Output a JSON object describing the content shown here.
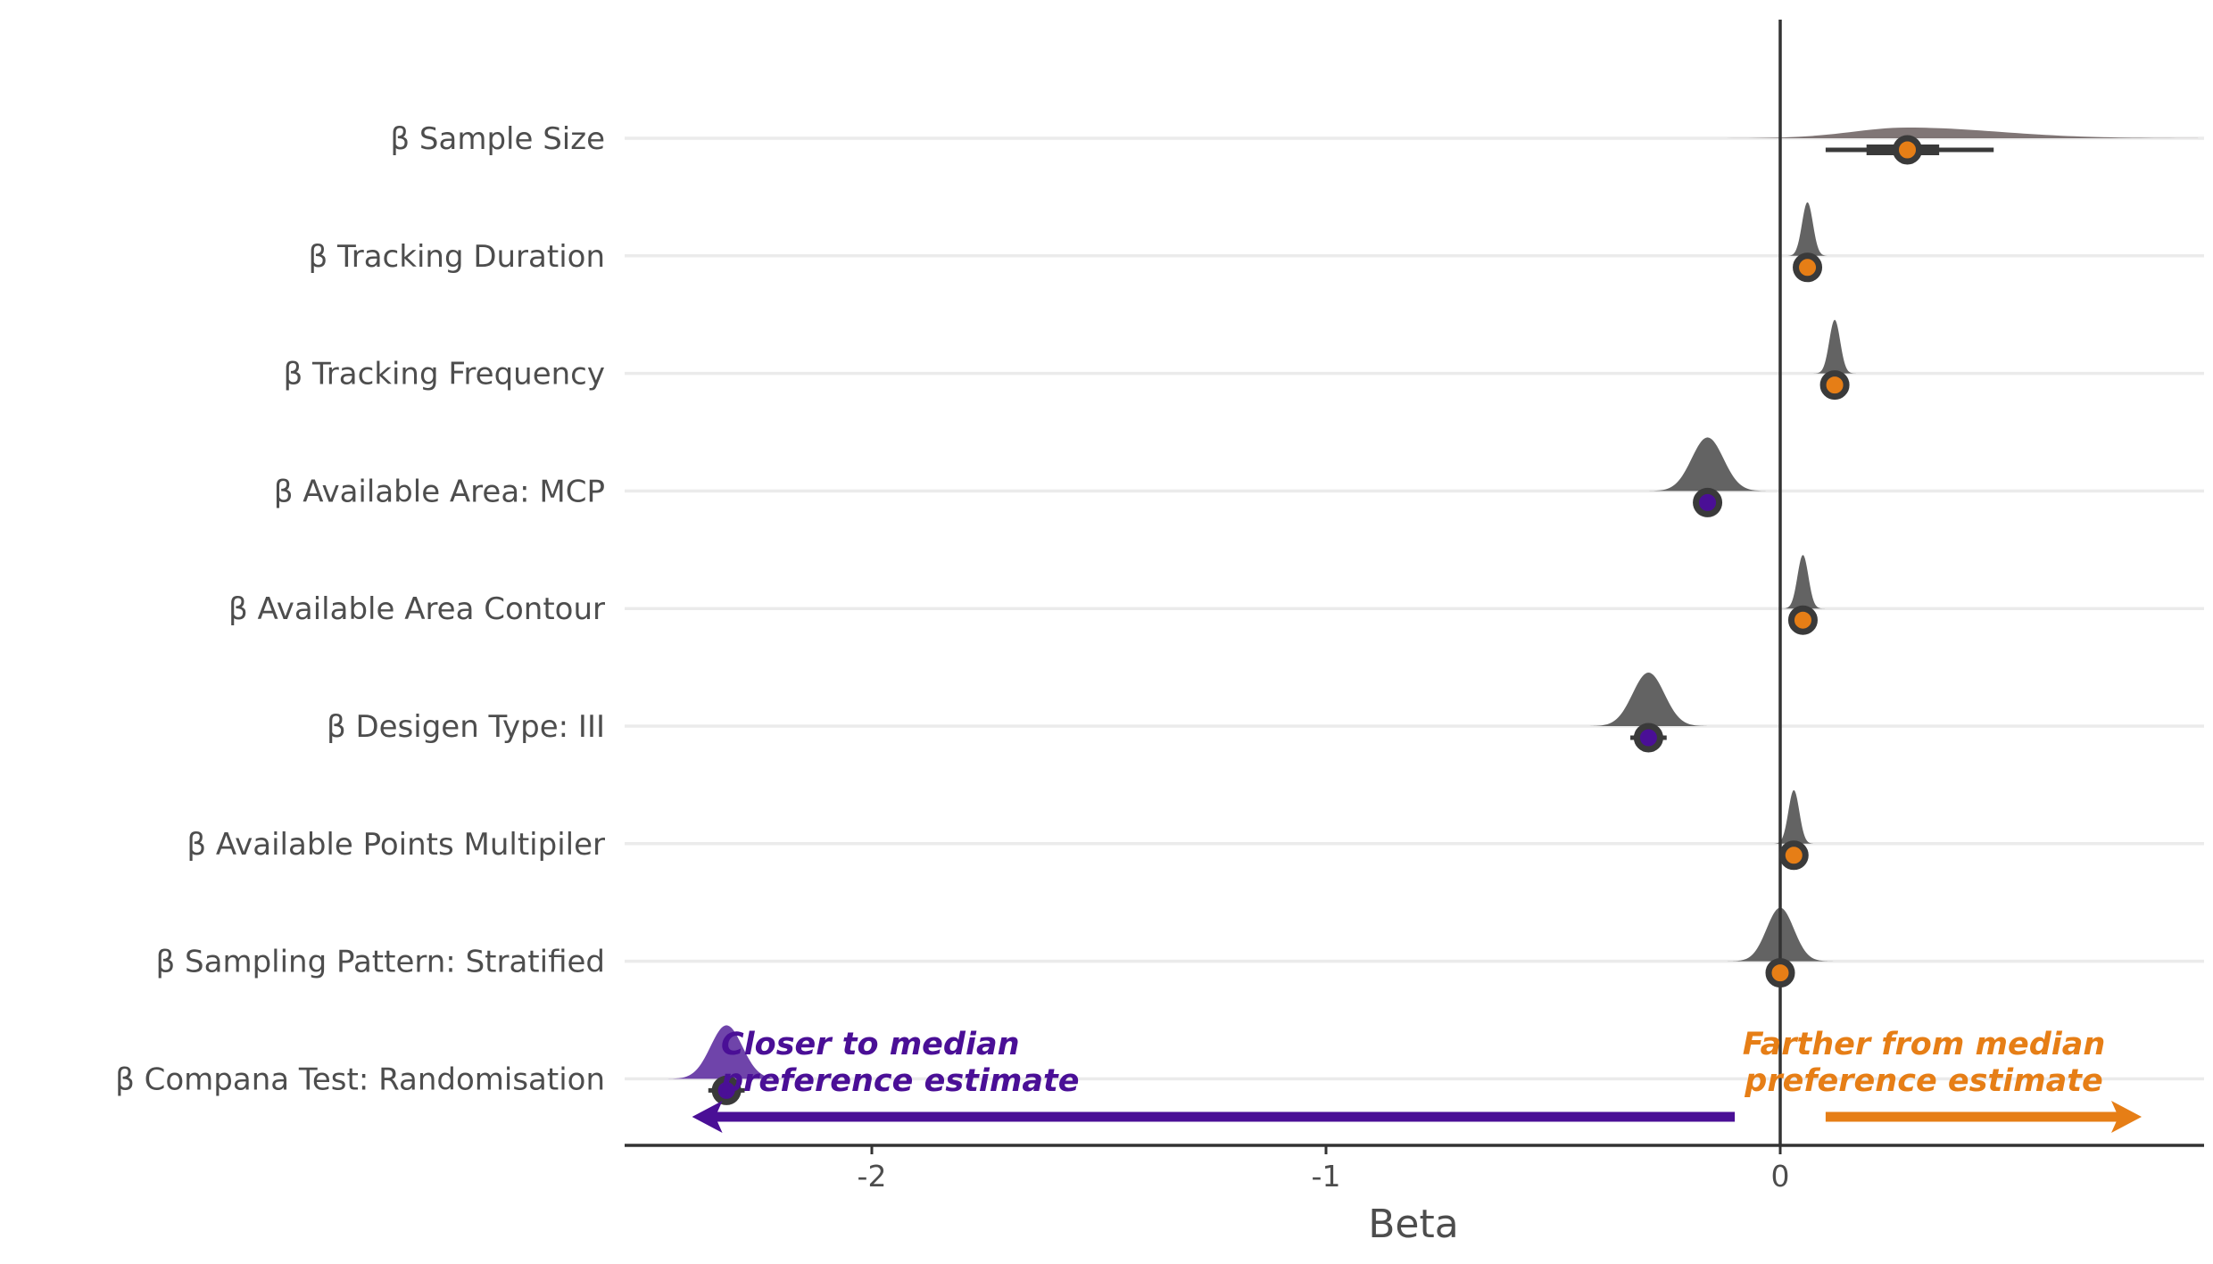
{
  "chart_data": {
    "type": "violin",
    "title": "",
    "xlabel": "Beta",
    "ylabel": "",
    "xlim": [
      -2.55,
      0.93
    ],
    "xticks": [
      -2,
      -1,
      0
    ],
    "xtick_labels": [
      "-2",
      "-1",
      "0"
    ],
    "reference_line_x": 0,
    "grid": "horizontal",
    "categories": [
      "β Sample Size",
      "β Tracking Duration",
      "β Tracking Frequency",
      "β Available Area: MCP",
      "β Available Area Contour",
      "β Desigen Type: III",
      "β Available Points Multipiler",
      "β Sampling Pattern: Stratified",
      "β Compana Test: Randomisation"
    ],
    "median": [
      0.28,
      0.06,
      0.12,
      -0.16,
      0.05,
      -0.29,
      0.03,
      0.0,
      -2.32
    ],
    "interval_66": [
      [
        0.19,
        0.35
      ],
      [
        0.05,
        0.07
      ],
      [
        0.11,
        0.13
      ],
      [
        -0.17,
        -0.15
      ],
      [
        0.04,
        0.06
      ],
      [
        -0.3,
        -0.28
      ],
      [
        0.02,
        0.04
      ],
      [
        -0.01,
        0.01
      ],
      [
        -2.33,
        -2.31
      ]
    ],
    "interval_95": [
      [
        0.1,
        0.47
      ],
      [
        0.04,
        0.08
      ],
      [
        0.1,
        0.14
      ],
      [
        -0.19,
        -0.13
      ],
      [
        0.03,
        0.07
      ],
      [
        -0.33,
        -0.25
      ],
      [
        0.01,
        0.05
      ],
      [
        -0.03,
        0.03
      ],
      [
        -2.36,
        -2.28
      ]
    ],
    "density_sd": [
      0.16,
      0.012,
      0.012,
      0.035,
      0.012,
      0.035,
      0.012,
      0.03,
      0.035
    ],
    "direction": [
      "farther",
      "farther",
      "farther",
      "closer",
      "farther",
      "closer",
      "farther",
      "farther",
      "closer"
    ],
    "colors": {
      "closer": "#4a0f96",
      "farther": "#e67e16",
      "closer_violin": "#5b2a9e",
      "violin": "#4d4d4d",
      "violin_sample_size": "#6e6363",
      "interval": "#3a3a3a",
      "grid": "#ebebeb",
      "axis": "#333333"
    },
    "annotations": {
      "closer_line1": "Closer to median",
      "closer_line2": "preference estimate",
      "farther_line1": "Farther from median",
      "farther_line2": "preference estimate"
    }
  }
}
